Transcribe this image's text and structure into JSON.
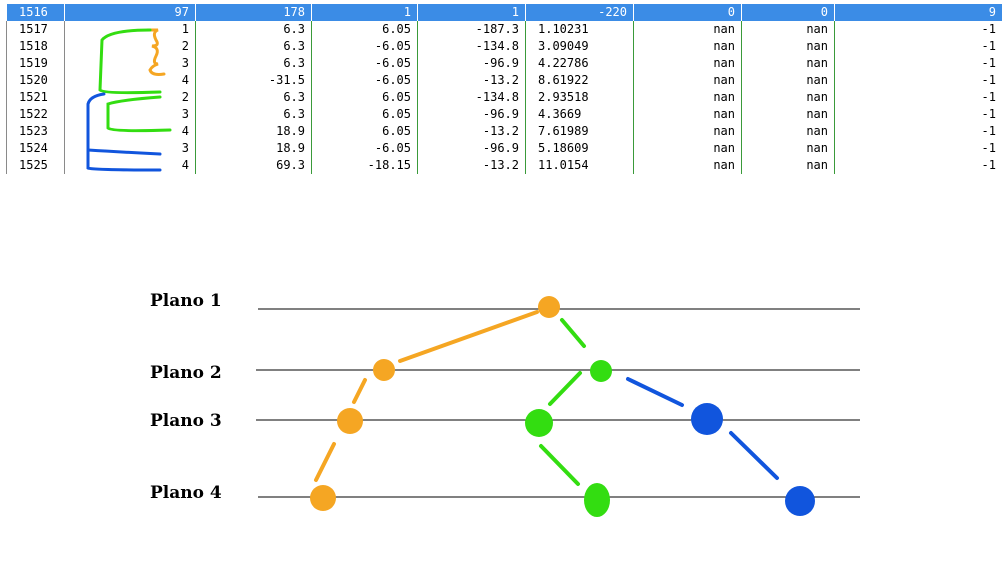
{
  "table": {
    "header": [
      "1516",
      "97",
      "178",
      "1",
      "1",
      "-220",
      "0",
      "0",
      "9"
    ],
    "rows": [
      [
        "1517",
        "1",
        "6.3",
        "6.05",
        "-187.3",
        "1.10231",
        "nan",
        "nan",
        "-1"
      ],
      [
        "1518",
        "2",
        "6.3",
        "-6.05",
        "-134.8",
        "3.09049",
        "nan",
        "nan",
        "-1"
      ],
      [
        "1519",
        "3",
        "6.3",
        "-6.05",
        "-96.9",
        "4.22786",
        "nan",
        "nan",
        "-1"
      ],
      [
        "1520",
        "4",
        "-31.5",
        "-6.05",
        "-13.2",
        "8.61922",
        "nan",
        "nan",
        "-1"
      ],
      [
        "1521",
        "2",
        "6.3",
        "6.05",
        "-134.8",
        "2.93518",
        "nan",
        "nan",
        "-1"
      ],
      [
        "1522",
        "3",
        "6.3",
        "6.05",
        "-96.9",
        "4.3669",
        "nan",
        "nan",
        "-1"
      ],
      [
        "1523",
        "4",
        "18.9",
        "6.05",
        "-13.2",
        "7.61989",
        "nan",
        "nan",
        "-1"
      ],
      [
        "1524",
        "3",
        "18.9",
        "-6.05",
        "-96.9",
        "5.18609",
        "nan",
        "nan",
        "-1"
      ],
      [
        "1525",
        "4",
        "69.3",
        "-18.15",
        "-13.2",
        "11.0154",
        "nan",
        "nan",
        "-1"
      ]
    ]
  },
  "diagram": {
    "planes": [
      "Plano 1",
      "Plano 2",
      "Plano 3",
      "Plano 4"
    ],
    "colors": {
      "orange": "#f5a623",
      "green": "#33dd11",
      "blue": "#1155dd"
    }
  }
}
